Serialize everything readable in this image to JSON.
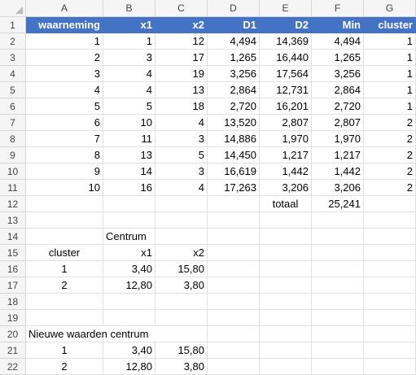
{
  "columns": [
    "A",
    "B",
    "C",
    "D",
    "E",
    "F",
    "G"
  ],
  "rows": [
    "1",
    "2",
    "3",
    "4",
    "5",
    "6",
    "7",
    "8",
    "9",
    "10",
    "11",
    "12",
    "13",
    "14",
    "15",
    "16",
    "17",
    "18",
    "19",
    "20",
    "21",
    "22"
  ],
  "table_header": [
    "waarneming",
    "x1",
    "x2",
    "D1",
    "D2",
    "Min",
    "cluster"
  ],
  "table_rows": [
    [
      "1",
      "1",
      "12",
      "4,494",
      "14,369",
      "4,494",
      "1"
    ],
    [
      "2",
      "3",
      "17",
      "1,265",
      "16,440",
      "1,265",
      "1"
    ],
    [
      "3",
      "4",
      "19",
      "3,256",
      "17,564",
      "3,256",
      "1"
    ],
    [
      "4",
      "4",
      "13",
      "2,864",
      "12,731",
      "2,864",
      "1"
    ],
    [
      "5",
      "5",
      "18",
      "2,720",
      "16,201",
      "2,720",
      "1"
    ],
    [
      "6",
      "10",
      "4",
      "13,520",
      "2,807",
      "2,807",
      "2"
    ],
    [
      "7",
      "11",
      "3",
      "14,886",
      "1,970",
      "1,970",
      "2"
    ],
    [
      "8",
      "13",
      "5",
      "14,450",
      "1,217",
      "1,217",
      "2"
    ],
    [
      "9",
      "14",
      "3",
      "16,619",
      "1,442",
      "1,442",
      "2"
    ],
    [
      "10",
      "16",
      "4",
      "17,263",
      "3,206",
      "3,206",
      "2"
    ]
  ],
  "totaal": {
    "label": "totaal",
    "value": "25,241"
  },
  "centrum": {
    "title": "Centrum",
    "headers": [
      "cluster",
      "x1",
      "x2"
    ],
    "rows": [
      [
        "1",
        "3,40",
        "15,80"
      ],
      [
        "2",
        "12,80",
        "3,80"
      ]
    ]
  },
  "nieuwe": {
    "title": "Nieuwe waarden centrum",
    "rows": [
      [
        "1",
        "3,40",
        "15,80"
      ],
      [
        "2",
        "12,80",
        "3,80"
      ]
    ]
  }
}
